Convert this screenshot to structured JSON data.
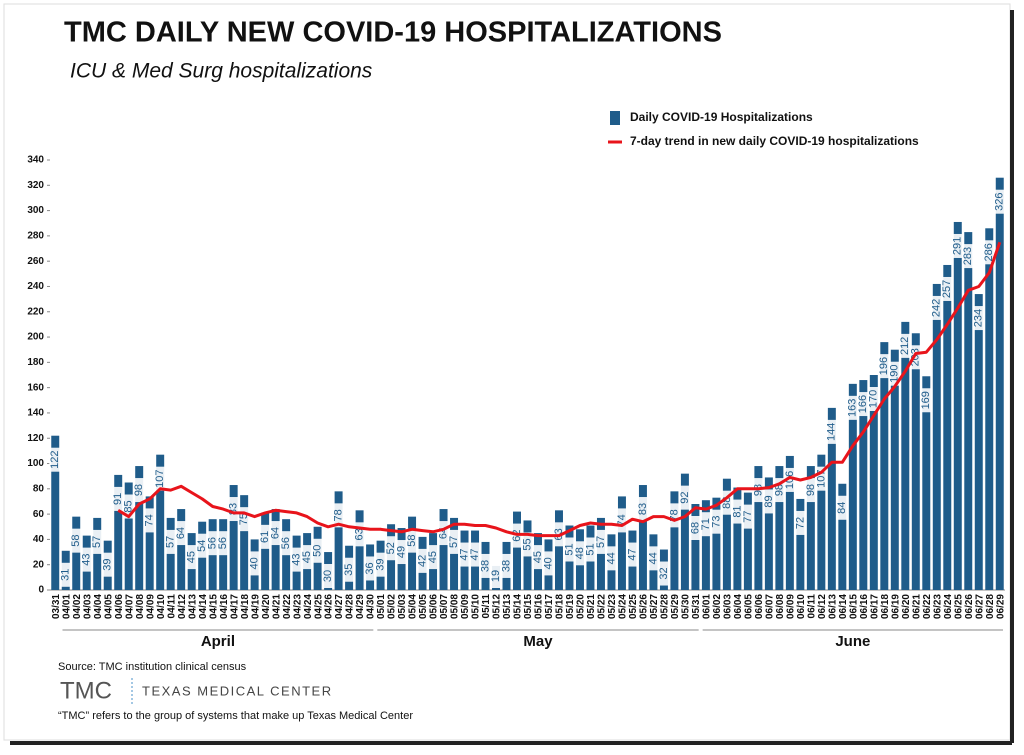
{
  "chart_data": {
    "type": "bar",
    "title": "TMC DAILY NEW COVID-19 HOSPITALIZATIONS",
    "subtitle": "ICU & Med Surg hospitalizations",
    "categories": [
      "03/31",
      "04/01",
      "04/02",
      "04/03",
      "04/04",
      "04/05",
      "04/06",
      "04/07",
      "04/08",
      "04/09",
      "04/10",
      "04/11",
      "04/12",
      "04/13",
      "04/14",
      "04/15",
      "04/16",
      "04/17",
      "04/18",
      "04/19",
      "04/20",
      "04/21",
      "04/22",
      "04/23",
      "04/24",
      "04/25",
      "04/26",
      "04/27",
      "04/28",
      "04/29",
      "04/30",
      "05/01",
      "05/02",
      "05/03",
      "05/04",
      "05/05",
      "05/06",
      "05/07",
      "05/08",
      "05/09",
      "05/10",
      "05/11",
      "05/12",
      "05/13",
      "05/14",
      "05/15",
      "05/16",
      "05/17",
      "05/18",
      "05/19",
      "05/20",
      "05/21",
      "05/22",
      "05/23",
      "05/24",
      "05/25",
      "05/26",
      "05/27",
      "05/28",
      "05/29",
      "05/30",
      "05/31",
      "06/01",
      "06/02",
      "06/03",
      "06/04",
      "06/05",
      "06/06",
      "06/07",
      "06/08",
      "06/09",
      "06/10",
      "06/11",
      "06/12",
      "06/13",
      "06/14",
      "06/15",
      "06/16",
      "06/17",
      "06/18",
      "06/19",
      "06/20",
      "06/21",
      "06/22",
      "06/23",
      "06/24",
      "06/25",
      "06/26",
      "06/27",
      "06/28",
      "06/29"
    ],
    "groups": [
      {
        "label": "April",
        "range": [
          1,
          30
        ]
      },
      {
        "label": "May",
        "range": [
          31,
          61
        ]
      },
      {
        "label": "June",
        "range": [
          62,
          90
        ]
      }
    ],
    "series": [
      {
        "name": "Daily COVID-19 Hospitalizations",
        "type": "bar",
        "color": "#1f5c8a",
        "values": [
          122,
          31,
          58,
          43,
          57,
          39,
          91,
          85,
          98,
          74,
          107,
          57,
          64,
          45,
          54,
          56,
          56,
          83,
          75,
          40,
          61,
          64,
          56,
          43,
          45,
          50,
          30,
          78,
          35,
          63,
          36,
          39,
          52,
          49,
          58,
          42,
          45,
          64,
          57,
          47,
          47,
          38,
          19,
          38,
          62,
          55,
          45,
          40,
          63,
          51,
          48,
          51,
          57,
          44,
          74,
          47,
          83,
          44,
          32,
          78,
          92,
          68,
          71,
          73,
          88,
          81,
          77,
          98,
          89,
          98,
          106,
          72,
          98,
          107,
          144,
          84,
          163,
          166,
          170,
          196,
          190,
          212,
          203,
          169,
          242,
          257,
          291,
          283,
          234,
          286,
          326
        ]
      },
      {
        "name": "7-day trend in new daily COVID-19 hospitalizations",
        "type": "line",
        "color": "#e8141b",
        "values": [
          null,
          null,
          null,
          null,
          null,
          null,
          63,
          58,
          68,
          72,
          80,
          79,
          82,
          77,
          72,
          66,
          64,
          61,
          61,
          58,
          61,
          63,
          62,
          61,
          58,
          53,
          50,
          52,
          50,
          49,
          48,
          48,
          47,
          46,
          48,
          47,
          46,
          48,
          52,
          52,
          51,
          51,
          49,
          46,
          44,
          44,
          43,
          43,
          43,
          47,
          51,
          53,
          52,
          52,
          51,
          56,
          54,
          58,
          58,
          55,
          58,
          65,
          64,
          67,
          73,
          80,
          80,
          80,
          81,
          84,
          89,
          87,
          89,
          93,
          101,
          101,
          114,
          125,
          138,
          151,
          161,
          173,
          187,
          188,
          198,
          210,
          223,
          237,
          240,
          251,
          275
        ]
      }
    ],
    "ylim": [
      0,
      340
    ],
    "yticks": [
      0,
      20,
      40,
      60,
      80,
      100,
      120,
      140,
      160,
      180,
      200,
      220,
      240,
      260,
      280,
      300,
      320,
      340
    ],
    "legend": "top-right",
    "source": "Source: TMC institution clinical census",
    "logo": {
      "mark": "TMC",
      "name": "TEXAS MEDICAL CENTER"
    },
    "footnote": "“TMC” refers to the group of systems that make up Texas Medical Center"
  }
}
